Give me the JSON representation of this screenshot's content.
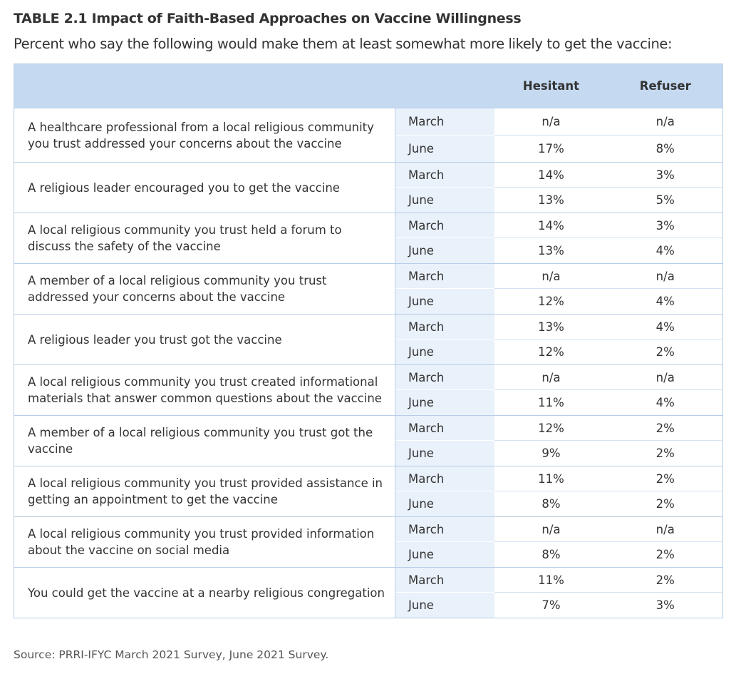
{
  "title": "TABLE 2.1 Impact of Faith-Based Approaches on Vaccine Willingness",
  "subtitle": "Percent who say the following would make them at least somewhat more likely to get the vaccine:",
  "source": "Source: PRRI-IFYC March 2021 Survey, June 2021 Survey.",
  "chart_data": {
    "type": "table",
    "columns": [
      "Hesitant",
      "Refuser"
    ],
    "rows": [
      {
        "question": "A healthcare professional from a local religious community you trust addressed your concerns about the vaccine",
        "periods": [
          {
            "period": "March",
            "hesitant": "n/a",
            "refuser": "n/a"
          },
          {
            "period": "June",
            "hesitant": "17%",
            "refuser": "8%"
          }
        ]
      },
      {
        "question": "A religious leader encouraged you to get the vaccine",
        "periods": [
          {
            "period": "March",
            "hesitant": "14%",
            "refuser": "3%"
          },
          {
            "period": "June",
            "hesitant": "13%",
            "refuser": "5%"
          }
        ]
      },
      {
        "question": "A local religious community you trust held a forum to discuss the safety of the vaccine",
        "periods": [
          {
            "period": "March",
            "hesitant": "14%",
            "refuser": "3%"
          },
          {
            "period": "June",
            "hesitant": "13%",
            "refuser": "4%"
          }
        ]
      },
      {
        "question": "A member of a local religious community you trust addressed your concerns about the vaccine",
        "periods": [
          {
            "period": "March",
            "hesitant": "n/a",
            "refuser": "n/a"
          },
          {
            "period": "June",
            "hesitant": "12%",
            "refuser": "4%"
          }
        ]
      },
      {
        "question": "A religious leader you trust got the vaccine",
        "periods": [
          {
            "period": "March",
            "hesitant": "13%",
            "refuser": "4%"
          },
          {
            "period": "June",
            "hesitant": "12%",
            "refuser": "2%"
          }
        ]
      },
      {
        "question": "A local religious community you trust created informational materials that answer common questions about the vaccine",
        "periods": [
          {
            "period": "March",
            "hesitant": "n/a",
            "refuser": "n/a"
          },
          {
            "period": "June",
            "hesitant": "11%",
            "refuser": "4%"
          }
        ]
      },
      {
        "question": "A member of a local religious community you trust got the vaccine",
        "periods": [
          {
            "period": "March",
            "hesitant": "12%",
            "refuser": "2%"
          },
          {
            "period": "June",
            "hesitant": "9%",
            "refuser": "2%"
          }
        ]
      },
      {
        "question": "A local religious community you trust provided assistance in getting an appointment to get the vaccine",
        "periods": [
          {
            "period": "March",
            "hesitant": "11%",
            "refuser": "2%"
          },
          {
            "period": "June",
            "hesitant": "8%",
            "refuser": "2%"
          }
        ]
      },
      {
        "question": "A local religious community you trust provided information about the vaccine on social media",
        "periods": [
          {
            "period": "March",
            "hesitant": "n/a",
            "refuser": "n/a"
          },
          {
            "period": "June",
            "hesitant": "8%",
            "refuser": "2%"
          }
        ]
      },
      {
        "question": "You could get the vaccine at a nearby religious congregation",
        "periods": [
          {
            "period": "March",
            "hesitant": "11%",
            "refuser": "2%"
          },
          {
            "period": "June",
            "hesitant": "7%",
            "refuser": "3%"
          }
        ]
      }
    ]
  }
}
